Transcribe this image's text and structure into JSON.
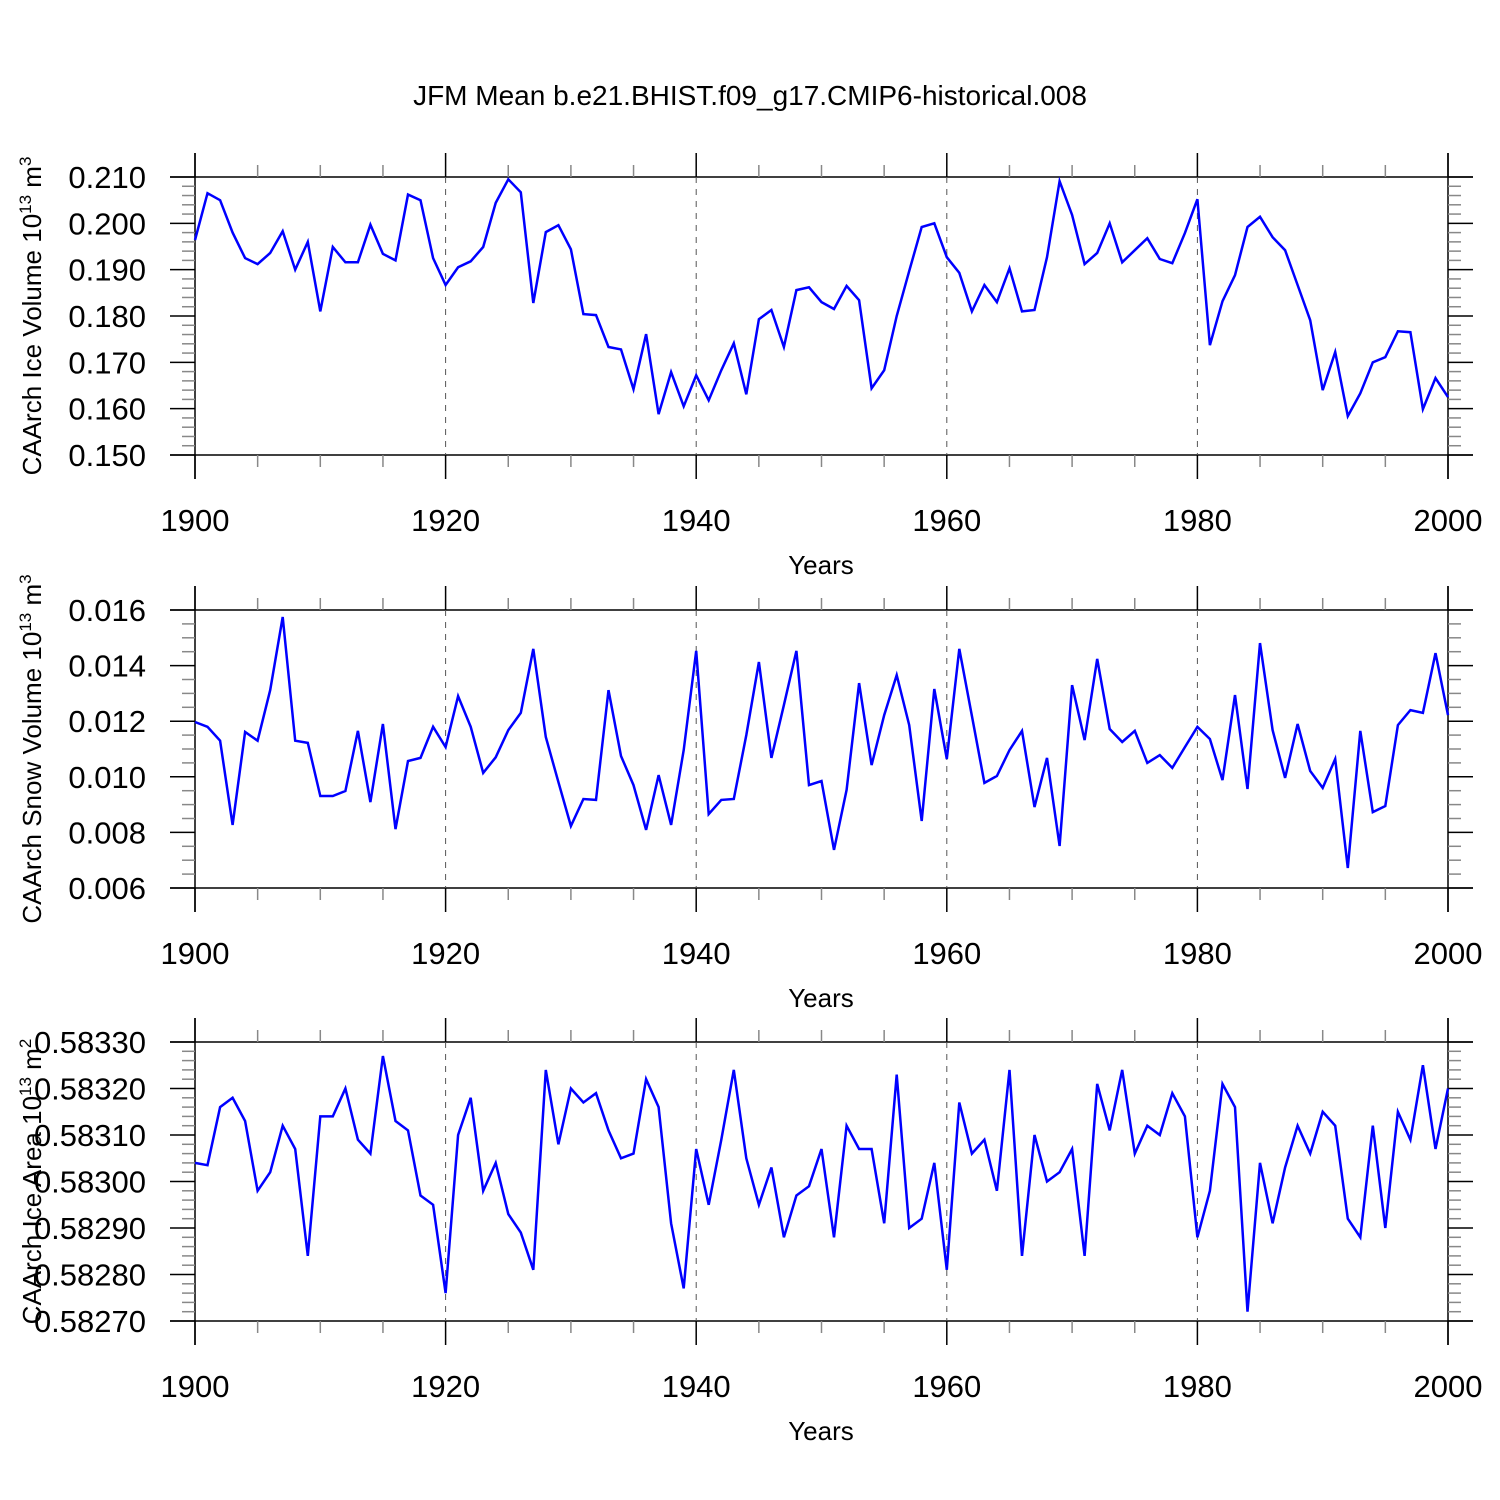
{
  "title": "JFM Mean b.e21.BHIST.f09_g17.CMIP6-historical.008",
  "chart_data": [
    {
      "type": "line",
      "title": "JFM Mean b.e21.BHIST.f09_g17.CMIP6-historical.008",
      "xlabel": "Years",
      "ylabel": {
        "text": "CAArch Ice Volume 10",
        "exp1": "13",
        "unit": " m",
        "exp2": "3"
      },
      "xlim": [
        1900,
        2000
      ],
      "ylim": [
        0.15,
        0.21
      ],
      "x_ticks": [
        "1900",
        "1920",
        "1940",
        "1960",
        "1980",
        "2000"
      ],
      "y_ticks": [
        "0.150",
        "0.160",
        "0.170",
        "0.180",
        "0.190",
        "0.200",
        "0.210"
      ],
      "line_color": "#0000ff",
      "reference_lines": "dashed vertical at 1920, 1940, 1960, 1980",
      "values": [
        0.1964,
        0.2065,
        0.205,
        0.198,
        0.1925,
        0.1912,
        0.1936,
        0.1983,
        0.19,
        0.196,
        0.181,
        0.1949,
        0.1916,
        0.1916,
        0.1997,
        0.1934,
        0.192,
        0.2062,
        0.205,
        0.1925,
        0.1867,
        0.1905,
        0.1918,
        0.1949,
        0.2044,
        0.2095,
        0.2067,
        0.1828,
        0.1981,
        0.1996,
        0.1944,
        0.1804,
        0.1802,
        0.1733,
        0.1728,
        0.1642,
        0.1761,
        0.1588,
        0.1679,
        0.1605,
        0.1672,
        0.1618,
        0.1683,
        0.1741,
        0.1631,
        0.1793,
        0.1813,
        0.1733,
        0.1856,
        0.1862,
        0.183,
        0.1815,
        0.1865,
        0.1834,
        0.1644,
        0.1683,
        0.18,
        0.1897,
        0.1992,
        0.2,
        0.1927,
        0.1893,
        0.181,
        0.1867,
        0.183,
        0.1903,
        0.181,
        0.1813,
        0.1927,
        0.2091,
        0.2018,
        0.1912,
        0.1936,
        0.2,
        0.1916,
        0.1942,
        0.1968,
        0.1923,
        0.1914,
        0.1979,
        0.2052,
        0.1737,
        0.1832,
        0.1888,
        0.1992,
        0.2014,
        0.197,
        0.1942,
        0.1867,
        0.1791,
        0.164,
        0.1722,
        0.1584,
        0.1633,
        0.17,
        0.1711,
        0.1767,
        0.1765,
        0.1599,
        0.1666,
        0.1625
      ]
    },
    {
      "type": "line",
      "xlabel": "Years",
      "ylabel": {
        "text": "CAArch Snow Volume 10",
        "exp1": "13",
        "unit": " m",
        "exp2": "3"
      },
      "xlim": [
        1900,
        2000
      ],
      "ylim": [
        0.006,
        0.016
      ],
      "x_ticks": [
        "1900",
        "1920",
        "1940",
        "1960",
        "1980",
        "2000"
      ],
      "y_ticks": [
        "0.006",
        "0.008",
        "0.010",
        "0.012",
        "0.014",
        "0.016"
      ],
      "line_color": "#0000ff",
      "reference_lines": "dashed vertical at 1920, 1940, 1960, 1980",
      "values": [
        0.01197,
        0.0118,
        0.0113,
        0.00827,
        0.01161,
        0.0113,
        0.01312,
        0.01575,
        0.0113,
        0.01122,
        0.00931,
        0.00931,
        0.00949,
        0.01165,
        0.00909,
        0.0119,
        0.00812,
        0.01057,
        0.01068,
        0.0118,
        0.01107,
        0.0129,
        0.0118,
        0.01014,
        0.0107,
        0.01168,
        0.0123,
        0.0146,
        0.01143,
        0.00981,
        0.00823,
        0.0092,
        0.00917,
        0.01312,
        0.01075,
        0.0097,
        0.00809,
        0.01006,
        0.00827,
        0.01096,
        0.01453,
        0.00866,
        0.00917,
        0.0092,
        0.0115,
        0.01413,
        0.01068,
        0.01258,
        0.01453,
        0.0097,
        0.00985,
        0.00737,
        0.00953,
        0.01337,
        0.01042,
        0.01222,
        0.01366,
        0.01186,
        0.00841,
        0.01316,
        0.01064,
        0.0146,
        0.01219,
        0.00978,
        0.01003,
        0.01096,
        0.01165,
        0.00891,
        0.01068,
        0.00751,
        0.0133,
        0.01132,
        0.01424,
        0.01172,
        0.01125,
        0.01165,
        0.0105,
        0.01078,
        0.01032,
        0.01107,
        0.0118,
        0.01136,
        0.00988,
        0.01294,
        0.00956,
        0.01481,
        0.01168,
        0.00996,
        0.0119,
        0.01021,
        0.0096,
        0.01064,
        0.00672,
        0.01165,
        0.00873,
        0.00895,
        0.01186,
        0.0124,
        0.0123,
        0.01445,
        0.01222
      ]
    },
    {
      "type": "line",
      "xlabel": "Years",
      "ylabel": {
        "text": "CAArch Ice Area 10",
        "exp1": "13",
        "unit": " m",
        "exp2": "2"
      },
      "xlim": [
        1900,
        2000
      ],
      "ylim": [
        0.5827,
        0.5833
      ],
      "x_ticks": [
        "1900",
        "1920",
        "1940",
        "1960",
        "1980",
        "2000"
      ],
      "y_ticks": [
        "0.58270",
        "0.58280",
        "0.58290",
        "0.58300",
        "0.58310",
        "0.58320",
        "0.58330"
      ],
      "line_color": "#0000ff",
      "reference_lines": "dashed vertical at 1920, 1940, 1960, 1980",
      "values": [
        0.58304,
        0.583035,
        0.58316,
        0.58318,
        0.58313,
        0.58298,
        0.58302,
        0.58312,
        0.58307,
        0.58284,
        0.58314,
        0.58314,
        0.5832,
        0.58309,
        0.58306,
        0.58327,
        0.58313,
        0.58311,
        0.58297,
        0.58295,
        0.58276,
        0.5831,
        0.58318,
        0.58298,
        0.58304,
        0.58293,
        0.58289,
        0.58281,
        0.58324,
        0.58308,
        0.5832,
        0.58317,
        0.58319,
        0.58311,
        0.58305,
        0.58306,
        0.58322,
        0.58316,
        0.58291,
        0.58277,
        0.58307,
        0.58295,
        0.58309,
        0.58324,
        0.58305,
        0.58295,
        0.58303,
        0.58288,
        0.58297,
        0.58299,
        0.58307,
        0.58288,
        0.58312,
        0.58307,
        0.58307,
        0.58291,
        0.58323,
        0.5829,
        0.58292,
        0.58304,
        0.58281,
        0.58317,
        0.58306,
        0.58309,
        0.58298,
        0.58324,
        0.58284,
        0.5831,
        0.583,
        0.58302,
        0.58307,
        0.58284,
        0.58321,
        0.58311,
        0.58324,
        0.58306,
        0.58312,
        0.5831,
        0.58319,
        0.58314,
        0.58288,
        0.58298,
        0.58321,
        0.58316,
        0.58272,
        0.58304,
        0.58291,
        0.58303,
        0.58312,
        0.58306,
        0.58315,
        0.58312,
        0.58292,
        0.58288,
        0.58312,
        0.5829,
        0.58315,
        0.58309,
        0.58325,
        0.58307,
        0.5832
      ]
    }
  ]
}
